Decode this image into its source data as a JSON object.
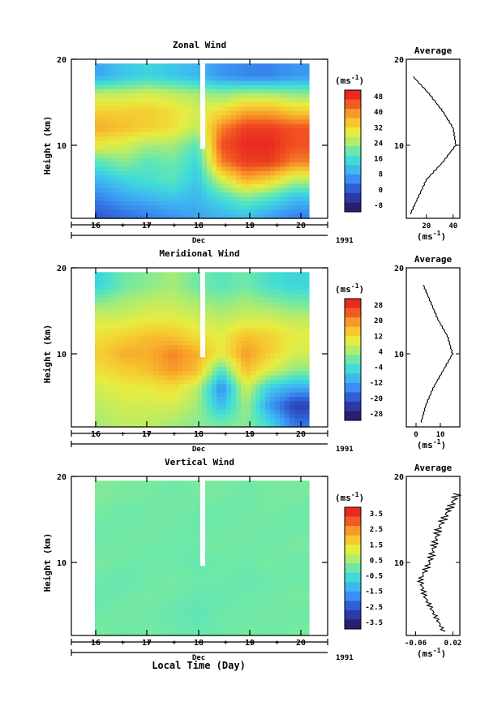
{
  "panels": [
    {
      "title": "Zonal Wind",
      "ylabel": "Height (km)",
      "yticks": [
        "20",
        "10"
      ],
      "xticks": [
        "16",
        "17",
        "18",
        "19",
        "20"
      ],
      "xaxis_label": "Dec",
      "year": "1991",
      "unit_label": "(ms",
      "unit_sup": "-1",
      "unit_close": ")",
      "colorbar_ticks": [
        "48",
        "40",
        "32",
        "24",
        "16",
        "8",
        "0",
        "-8"
      ],
      "average_title": "Average",
      "average_yticks": [
        "20",
        "10"
      ],
      "average_xticks": [
        "20",
        "40"
      ],
      "average_xlabel": "(ms",
      "average_xlabel_sup": "-1",
      "average_xlabel_close": ")"
    },
    {
      "title": "Meridional Wind",
      "ylabel": "Height (km)",
      "yticks": [
        "20",
        "10"
      ],
      "xticks": [
        "16",
        "17",
        "18",
        "19",
        "20"
      ],
      "xaxis_label": "Dec",
      "year": "1991",
      "unit_label": "(ms",
      "unit_sup": "-1",
      "unit_close": ")",
      "colorbar_ticks": [
        "28",
        "20",
        "12",
        "4",
        "-4",
        "-12",
        "-20",
        "-28"
      ],
      "average_title": "Average",
      "average_yticks": [
        "20",
        "10"
      ],
      "average_xticks": [
        "0",
        "10"
      ],
      "average_xlabel": "(ms",
      "average_xlabel_sup": "-1",
      "average_xlabel_close": ")"
    },
    {
      "title": "Vertical Wind",
      "ylabel": "Height (km)",
      "yticks": [
        "20",
        "10"
      ],
      "xticks": [
        "16",
        "17",
        "18",
        "19",
        "20"
      ],
      "xaxis_label": "Dec",
      "year": "1991",
      "unit_label": "(ms",
      "unit_sup": "-1",
      "unit_close": ")",
      "colorbar_ticks": [
        "3.5",
        "2.5",
        "1.5",
        "0.5",
        "-0.5",
        "-1.5",
        "-2.5",
        "-3.5"
      ],
      "average_title": "Average",
      "average_yticks": [
        "20",
        "10"
      ],
      "average_xticks": [
        "-0.06",
        "0.02"
      ],
      "average_xlabel": "(ms",
      "average_xlabel_sup": "-1",
      "average_xlabel_close": ")"
    }
  ],
  "x_axis_title": "Local Time (Day)",
  "colormap": [
    "#2a1f6e",
    "#2b3aa8",
    "#2f5ed6",
    "#3a8ff0",
    "#3fb8f0",
    "#40dcd8",
    "#6ee8a8",
    "#b4ec6a",
    "#e8ec40",
    "#f6c830",
    "#f79a28",
    "#f25a22",
    "#e82a20"
  ],
  "chart_data": [
    {
      "type": "heatmap",
      "title": "Zonal Wind",
      "xlabel": "Dec",
      "ylabel": "Height (km)",
      "xlim": [
        15.9,
        20.3
      ],
      "ylim": [
        1.5,
        19.5
      ],
      "zlim": [
        -8,
        52
      ],
      "x": [
        16.0,
        16.5,
        17.0,
        17.5,
        18.0,
        18.5,
        19.0,
        19.5,
        20.0
      ],
      "y": [
        2,
        4,
        6,
        8,
        10,
        12,
        14,
        16,
        18
      ],
      "z": [
        [
          2,
          4,
          6,
          8,
          10,
          12,
          14,
          10,
          6
        ],
        [
          6,
          10,
          12,
          14,
          12,
          18,
          24,
          20,
          14
        ],
        [
          12,
          16,
          18,
          20,
          14,
          30,
          40,
          36,
          28
        ],
        [
          20,
          24,
          20,
          22,
          16,
          44,
          50,
          50,
          44
        ],
        [
          32,
          30,
          26,
          26,
          20,
          48,
          52,
          52,
          48
        ],
        [
          40,
          38,
          36,
          34,
          28,
          44,
          50,
          50,
          48
        ],
        [
          36,
          36,
          36,
          34,
          30,
          34,
          40,
          40,
          36
        ],
        [
          28,
          28,
          30,
          28,
          26,
          24,
          26,
          26,
          24
        ],
        [
          10,
          14,
          16,
          14,
          12,
          8,
          6,
          6,
          8
        ]
      ],
      "average": {
        "y": [
          2,
          4,
          6,
          8,
          10,
          12,
          14,
          16,
          18
        ],
        "values": [
          8,
          14,
          20,
          32,
          42,
          40,
          32,
          22,
          10
        ],
        "xlim": [
          5,
          45
        ]
      }
    },
    {
      "type": "heatmap",
      "title": "Meridional Wind",
      "xlabel": "Dec",
      "ylabel": "Height (km)",
      "xlim": [
        15.9,
        20.3
      ],
      "ylim": [
        1.5,
        19.5
      ],
      "zlim": [
        -28,
        32
      ],
      "x": [
        16.0,
        16.5,
        17.0,
        17.5,
        18.0,
        18.5,
        19.0,
        19.5,
        20.0
      ],
      "y": [
        2,
        4,
        6,
        8,
        10,
        12,
        14,
        16,
        18
      ],
      "z": [
        [
          6,
          8,
          8,
          6,
          4,
          2,
          4,
          -4,
          -16
        ],
        [
          8,
          10,
          10,
          10,
          6,
          -8,
          6,
          -12,
          -22
        ],
        [
          10,
          12,
          12,
          14,
          8,
          -14,
          10,
          -6,
          -10
        ],
        [
          14,
          16,
          18,
          22,
          18,
          -2,
          18,
          10,
          4
        ],
        [
          16,
          20,
          20,
          24,
          20,
          12,
          22,
          16,
          10
        ],
        [
          14,
          16,
          18,
          18,
          14,
          12,
          18,
          16,
          12
        ],
        [
          10,
          10,
          12,
          12,
          10,
          8,
          10,
          10,
          8
        ],
        [
          4,
          6,
          8,
          8,
          6,
          4,
          6,
          4,
          2
        ],
        [
          -4,
          2,
          4,
          6,
          2,
          0,
          2,
          -2,
          -4
        ]
      ],
      "average": {
        "y": [
          2,
          4,
          6,
          8,
          10,
          12,
          14,
          16,
          18
        ],
        "values": [
          2,
          4,
          7,
          11,
          15,
          13,
          9,
          6,
          3
        ],
        "xlim": [
          -4,
          18
        ]
      }
    },
    {
      "type": "heatmap",
      "title": "Vertical Wind",
      "xlabel": "Dec",
      "ylabel": "Height (km)",
      "xlim": [
        15.9,
        20.3
      ],
      "ylim": [
        1.5,
        19.5
      ],
      "zlim": [
        -4,
        4
      ],
      "x": [
        16.0,
        16.5,
        17.0,
        17.5,
        18.0,
        18.5,
        19.0,
        19.5,
        20.0
      ],
      "y": [
        2,
        4,
        6,
        8,
        10,
        12,
        14,
        16,
        18
      ],
      "z": [
        [
          0.1,
          0.0,
          0.1,
          0.0,
          -0.1,
          0.0,
          0.1,
          0.0,
          0.1
        ],
        [
          0.0,
          0.1,
          0.0,
          -0.1,
          -0.2,
          0.0,
          0.0,
          0.1,
          0.0
        ],
        [
          -0.1,
          0.0,
          0.1,
          0.0,
          -0.1,
          -0.1,
          0.0,
          0.0,
          0.1
        ],
        [
          0.0,
          -0.1,
          0.0,
          0.1,
          0.0,
          0.0,
          -0.1,
          0.0,
          0.0
        ],
        [
          0.1,
          0.0,
          0.0,
          0.0,
          -0.1,
          0.0,
          0.0,
          0.1,
          0.0
        ],
        [
          0.0,
          0.1,
          0.0,
          0.0,
          0.0,
          0.1,
          0.0,
          0.0,
          0.1
        ],
        [
          0.0,
          0.0,
          0.1,
          0.0,
          0.0,
          0.0,
          0.1,
          0.0,
          0.0
        ],
        [
          0.1,
          0.0,
          0.0,
          0.1,
          0.0,
          0.0,
          0.0,
          0.1,
          0.0
        ],
        [
          0.2,
          0.1,
          0.1,
          0.0,
          0.1,
          0.1,
          0.0,
          0.1,
          0.1
        ]
      ],
      "average": {
        "y": [
          2,
          4,
          6,
          8,
          10,
          12,
          14,
          16,
          18
        ],
        "values": [
          0.0,
          -0.02,
          -0.04,
          -0.05,
          -0.03,
          -0.02,
          -0.01,
          0.01,
          0.03
        ],
        "xlim": [
          -0.08,
          0.035
        ]
      }
    }
  ]
}
